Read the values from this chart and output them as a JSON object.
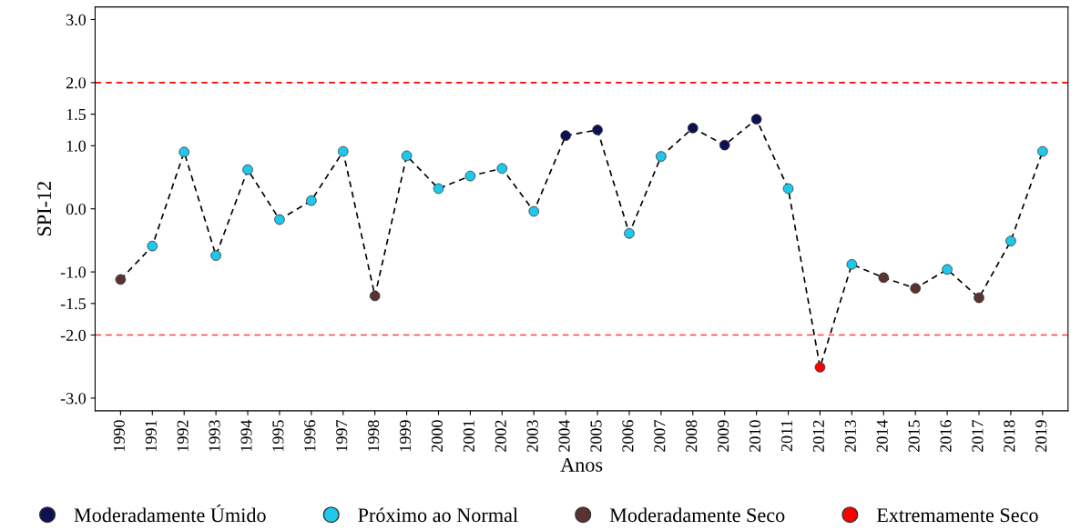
{
  "chart_data": {
    "type": "line",
    "xlabel": "Anos",
    "ylabel": "SPI-12",
    "x": [
      1990,
      1991,
      1992,
      1993,
      1994,
      1995,
      1996,
      1997,
      1998,
      1999,
      2000,
      2001,
      2002,
      2003,
      2004,
      2005,
      2006,
      2007,
      2008,
      2009,
      2010,
      2011,
      2012,
      2013,
      2014,
      2015,
      2016,
      2017,
      2018,
      2019
    ],
    "xlim": [
      1989.2,
      2019.8
    ],
    "xticks": [
      1990,
      1991,
      1992,
      1993,
      1994,
      1995,
      1996,
      1997,
      1998,
      1999,
      2000,
      2001,
      2002,
      2003,
      2004,
      2005,
      2006,
      2007,
      2008,
      2009,
      2010,
      2011,
      2012,
      2013,
      2014,
      2015,
      2016,
      2017,
      2018,
      2019
    ],
    "series": [
      {
        "color": "#000000",
        "line_style": "dashed",
        "marker": "none",
        "values": [
          -1.12,
          -0.59,
          0.9,
          -0.74,
          0.62,
          -0.17,
          0.13,
          0.91,
          -1.38,
          0.84,
          0.32,
          0.52,
          0.64,
          -0.04,
          1.16,
          1.25,
          -0.39,
          0.83,
          1.28,
          1.01,
          1.42,
          0.32,
          -2.51,
          -0.88,
          -1.09,
          -1.26,
          -0.96,
          -1.41,
          -0.51,
          0.91
        ]
      },
      {
        "type": "scatter",
        "name": "Moderadamente Úmido",
        "color": "#0b1152",
        "marker": "circle",
        "x": [
          2004,
          2005,
          2008,
          2009,
          2010
        ],
        "values": [
          1.16,
          1.25,
          1.28,
          1.01,
          1.42
        ]
      },
      {
        "type": "scatter",
        "name": "Próximo ao Normal",
        "color": "#1ec8ea",
        "marker": "circle",
        "x": [
          1991,
          1992,
          1993,
          1994,
          1995,
          1996,
          1997,
          1999,
          2000,
          2001,
          2002,
          2003,
          2006,
          2007,
          2011,
          2013,
          2016,
          2018,
          2019
        ],
        "values": [
          -0.59,
          0.9,
          -0.74,
          0.62,
          -0.17,
          0.13,
          0.91,
          0.84,
          0.32,
          0.52,
          0.64,
          -0.04,
          -0.39,
          0.83,
          0.32,
          -0.88,
          -0.96,
          -0.51,
          0.91
        ]
      },
      {
        "type": "scatter",
        "name": "Moderadamente Seco",
        "color": "#5a3232",
        "marker": "circle",
        "x": [
          1990,
          1998,
          2014,
          2015,
          2017
        ],
        "values": [
          -1.12,
          -1.38,
          -1.09,
          -1.26,
          -1.41
        ]
      },
      {
        "type": "scatter",
        "name": "Extremamente Seco",
        "color": "#ff0000",
        "marker": "circle",
        "x": [
          2012
        ],
        "values": [
          -2.51
        ]
      }
    ],
    "ylim": [
      -3.2,
      3.2
    ],
    "yticks": [
      {
        "value": 3,
        "label": "3.0"
      },
      {
        "value": 2,
        "label": "2.0"
      },
      1.5,
      {
        "value": 1,
        "label": "1.0"
      },
      {
        "value": 0,
        "label": "0.0"
      },
      {
        "value": -1,
        "label": "-1.0"
      },
      -1.5,
      {
        "value": -2,
        "label": "-2.0"
      },
      {
        "value": -3,
        "label": "-3.0"
      }
    ],
    "ref_lines": [
      {
        "axis": "y",
        "value": 2,
        "color": "#ff0000",
        "line_style": "dashed"
      },
      {
        "axis": "y",
        "value": -2,
        "color": "#ff4040",
        "line_style": "dashed"
      }
    ],
    "grid": false,
    "legend": "bottom"
  }
}
